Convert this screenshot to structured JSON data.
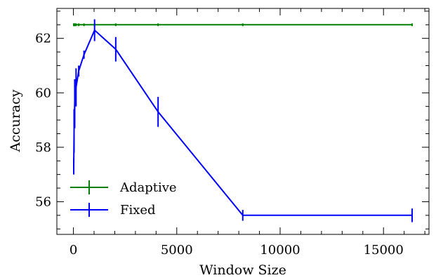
{
  "chart_data": {
    "type": "line",
    "title": "",
    "xlabel": "Window Size",
    "ylabel": "Accuracy",
    "xlim": [
      -800,
      17200
    ],
    "ylim": [
      54.8,
      63.1
    ],
    "xticks": [
      0,
      5000,
      10000,
      15000
    ],
    "yticks": [
      56,
      58,
      60,
      62
    ],
    "grid": false,
    "legend_position": "lower-left",
    "series": [
      {
        "name": "Adaptive",
        "color": "#008000",
        "x": [
          16,
          32,
          64,
          128,
          256,
          512,
          1024,
          2048,
          4096,
          8192,
          16384
        ],
        "y": [
          62.5,
          62.5,
          62.5,
          62.5,
          62.5,
          62.5,
          62.5,
          62.5,
          62.5,
          62.5,
          62.5
        ],
        "err": [
          0.05,
          0.05,
          0.05,
          0.05,
          0.05,
          0.05,
          0.05,
          0.05,
          0.05,
          0.05,
          0.05
        ]
      },
      {
        "name": "Fixed",
        "color": "#0000ff",
        "x": [
          16,
          32,
          64,
          128,
          256,
          512,
          1024,
          2048,
          4096,
          8192,
          16384
        ],
        "y": [
          57.3,
          58.6,
          59.6,
          60.2,
          60.8,
          61.4,
          62.3,
          61.6,
          59.3,
          55.5,
          55.5
        ],
        "err": [
          0.3,
          0.8,
          0.9,
          0.7,
          0.2,
          0.15,
          0.4,
          0.45,
          0.55,
          0.2,
          0.25
        ]
      }
    ]
  }
}
